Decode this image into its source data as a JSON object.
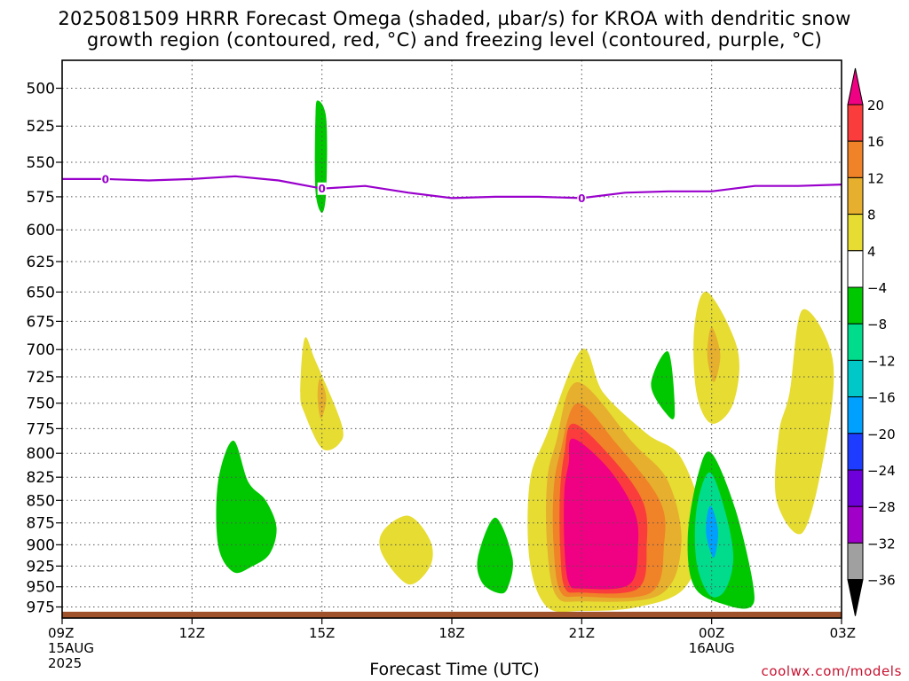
{
  "title_line1": "2025081509 HRRR Forecast Omega (shaded, µbar/s) for KROA with dendritic snow",
  "title_line2": "growth region (contoured, red, °C) and freezing level (contoured, purple, °C)",
  "credit": "coolwx.com/models",
  "chart_data": {
    "type": "heatmap",
    "title": "2025081509 HRRR Forecast Omega (shaded, µbar/s) for KROA with dendritic snow growth region (contoured, red, °C) and freezing level (contoured, purple, °C)",
    "xlabel": "Forecast Time (UTC)",
    "ylabel": "",
    "xlim": [
      0,
      18
    ],
    "ylim": [
      985,
      485
    ],
    "y_scale": "log (pressure, hPa, inverted)",
    "grid": true,
    "x_ticks": [
      {
        "value": 0,
        "label": "09Z",
        "sub": [
          "15AUG",
          "2025"
        ]
      },
      {
        "value": 3,
        "label": "12Z",
        "sub": []
      },
      {
        "value": 6,
        "label": "15Z",
        "sub": []
      },
      {
        "value": 9,
        "label": "18Z",
        "sub": []
      },
      {
        "value": 12,
        "label": "21Z",
        "sub": []
      },
      {
        "value": 15,
        "label": "00Z",
        "sub": [
          "16AUG"
        ]
      },
      {
        "value": 18,
        "label": "03Z",
        "sub": []
      }
    ],
    "y_ticks": [
      500,
      525,
      550,
      575,
      600,
      625,
      650,
      675,
      700,
      725,
      750,
      775,
      800,
      825,
      850,
      875,
      900,
      925,
      950,
      975
    ],
    "colorbar": {
      "labels": [
        "20",
        "16",
        "12",
        "8",
        "4",
        "−4",
        "−8",
        "−12",
        "−16",
        "−20",
        "−24",
        "−28",
        "−32",
        "−36"
      ],
      "colors": [
        "#000000",
        "#a0a0a0",
        "#a000c8",
        "#6e00dc",
        "#1e3cff",
        "#00a0ff",
        "#00c8c8",
        "#00dc8c",
        "#00c800",
        "#ffffff",
        "#e6dc32",
        "#e6af2d",
        "#f08228",
        "#fa3c3c",
        "#f00082"
      ],
      "below_color": "#000000",
      "above_color": "#f00082"
    },
    "freezing_level": {
      "color": "#9900cc",
      "label": "0",
      "points": [
        [
          0,
          562
        ],
        [
          1,
          562
        ],
        [
          2,
          563
        ],
        [
          3,
          562
        ],
        [
          4,
          560
        ],
        [
          5,
          563
        ],
        [
          6,
          569
        ],
        [
          7,
          567
        ],
        [
          8,
          572
        ],
        [
          9,
          576
        ],
        [
          10,
          575
        ],
        [
          11,
          575
        ],
        [
          12,
          576
        ],
        [
          13,
          572
        ],
        [
          14,
          571
        ],
        [
          15,
          571
        ],
        [
          16,
          567
        ],
        [
          17,
          567
        ],
        [
          18,
          566
        ]
      ],
      "labels_at": [
        [
          1,
          562
        ],
        [
          6,
          569
        ],
        [
          12,
          576
        ]
      ]
    },
    "surface": {
      "color": "#a0522d",
      "pressure": 981
    },
    "omega_regions": [
      {
        "value_class": "-8",
        "color": "#00c800",
        "points": [
          [
            5.9,
            508
          ],
          [
            6.1,
            520
          ],
          [
            6.1,
            570
          ],
          [
            6.0,
            587
          ],
          [
            5.85,
            570
          ],
          [
            5.85,
            520
          ]
        ]
      },
      {
        "value_class": "4",
        "color": "#e6dc32",
        "points": [
          [
            5.6,
            690
          ],
          [
            5.85,
            710
          ],
          [
            6.45,
            770
          ],
          [
            6.4,
            790
          ],
          [
            6.0,
            795
          ],
          [
            5.6,
            760
          ],
          [
            5.5,
            740
          ]
        ]
      },
      {
        "value_class": "8",
        "color": "#e6af2d",
        "points": [
          [
            5.95,
            727
          ],
          [
            6.1,
            745
          ],
          [
            5.98,
            765
          ],
          [
            5.9,
            745
          ]
        ]
      },
      {
        "value_class": "-8",
        "color": "#00c800",
        "points": [
          [
            3.95,
            787
          ],
          [
            4.3,
            830
          ],
          [
            4.7,
            850
          ],
          [
            4.95,
            880
          ],
          [
            4.8,
            910
          ],
          [
            4.4,
            925
          ],
          [
            3.95,
            932
          ],
          [
            3.6,
            900
          ],
          [
            3.6,
            830
          ]
        ]
      },
      {
        "value_class": "4",
        "color": "#e6dc32",
        "points": [
          [
            8.0,
            867
          ],
          [
            8.5,
            895
          ],
          [
            8.5,
            925
          ],
          [
            8.0,
            947
          ],
          [
            7.4,
            912
          ],
          [
            7.4,
            885
          ]
        ]
      },
      {
        "value_class": "-8",
        "color": "#00c800",
        "points": [
          [
            10.0,
            869
          ],
          [
            10.4,
            915
          ],
          [
            10.3,
            950
          ],
          [
            10.1,
            958
          ],
          [
            9.7,
            945
          ],
          [
            9.6,
            915
          ]
        ]
      },
      {
        "value_class": "4",
        "color": "#e6dc32",
        "points": [
          [
            12.0,
            700
          ],
          [
            12.5,
            740
          ],
          [
            13.5,
            780
          ],
          [
            14.3,
            805
          ],
          [
            14.8,
            880
          ],
          [
            14.4,
            950
          ],
          [
            13.3,
            975
          ],
          [
            12.0,
            980
          ],
          [
            11.2,
            975
          ],
          [
            10.8,
            920
          ],
          [
            10.8,
            830
          ],
          [
            11.2,
            780
          ]
        ]
      },
      {
        "value_class": "8",
        "color": "#e6af2d",
        "points": [
          [
            11.9,
            730
          ],
          [
            13.2,
            790
          ],
          [
            14.0,
            830
          ],
          [
            14.3,
            900
          ],
          [
            13.8,
            960
          ],
          [
            12.0,
            968
          ],
          [
            11.4,
            960
          ],
          [
            11.2,
            900
          ],
          [
            11.2,
            830
          ],
          [
            11.4,
            790
          ]
        ]
      },
      {
        "value_class": "12",
        "color": "#f08228",
        "points": [
          [
            11.9,
            750
          ],
          [
            12.8,
            790
          ],
          [
            13.8,
            850
          ],
          [
            13.9,
            900
          ],
          [
            13.6,
            957
          ],
          [
            12.0,
            962
          ],
          [
            11.5,
            955
          ],
          [
            11.35,
            900
          ],
          [
            11.35,
            840
          ],
          [
            11.5,
            800
          ]
        ]
      },
      {
        "value_class": "16",
        "color": "#fa3c3c",
        "points": [
          [
            11.8,
            770
          ],
          [
            12.6,
            800
          ],
          [
            13.4,
            850
          ],
          [
            13.5,
            900
          ],
          [
            13.3,
            952
          ],
          [
            12.0,
            957
          ],
          [
            11.6,
            950
          ],
          [
            11.5,
            900
          ],
          [
            11.5,
            840
          ],
          [
            11.6,
            800
          ]
        ]
      },
      {
        "value_class": "20",
        "color": "#f00082",
        "points": [
          [
            11.8,
            785
          ],
          [
            12.6,
            815
          ],
          [
            13.2,
            860
          ],
          [
            13.3,
            900
          ],
          [
            13.1,
            947
          ],
          [
            12.0,
            952
          ],
          [
            11.7,
            945
          ],
          [
            11.6,
            900
          ],
          [
            11.6,
            840
          ],
          [
            11.7,
            810
          ]
        ]
      },
      {
        "value_class": "-8",
        "color": "#00c800",
        "points": [
          [
            14.0,
            702
          ],
          [
            14.15,
            760
          ],
          [
            13.95,
            760
          ],
          [
            13.6,
            732
          ]
        ]
      },
      {
        "value_class": "4",
        "color": "#e6dc32",
        "points": [
          [
            14.9,
            650
          ],
          [
            15.6,
            700
          ],
          [
            15.5,
            750
          ],
          [
            15.0,
            770
          ],
          [
            14.65,
            740
          ],
          [
            14.6,
            680
          ]
        ]
      },
      {
        "value_class": "8",
        "color": "#e6af2d",
        "points": [
          [
            15.0,
            680
          ],
          [
            15.2,
            705
          ],
          [
            15.05,
            730
          ],
          [
            14.9,
            705
          ]
        ]
      },
      {
        "value_class": "4",
        "color": "#e6dc32",
        "points": [
          [
            17.1,
            665
          ],
          [
            17.8,
            710
          ],
          [
            17.6,
            800
          ],
          [
            17.1,
            886
          ],
          [
            16.5,
            850
          ],
          [
            16.55,
            780
          ],
          [
            16.8,
            740
          ]
        ]
      },
      {
        "value_class": "-8",
        "color": "#00c800",
        "points": [
          [
            15.0,
            800
          ],
          [
            15.55,
            860
          ],
          [
            15.95,
            945
          ],
          [
            15.9,
            975
          ],
          [
            15.3,
            972
          ],
          [
            14.6,
            950
          ],
          [
            14.45,
            890
          ],
          [
            14.7,
            820
          ]
        ]
      },
      {
        "value_class": "-12",
        "color": "#00dc8c",
        "points": [
          [
            14.95,
            820
          ],
          [
            15.3,
            860
          ],
          [
            15.5,
            915
          ],
          [
            15.3,
            955
          ],
          [
            14.95,
            960
          ],
          [
            14.65,
            920
          ],
          [
            14.65,
            860
          ]
        ]
      },
      {
        "value_class": "-16",
        "color": "#00a0ff",
        "points": [
          [
            15.0,
            857
          ],
          [
            15.15,
            885
          ],
          [
            15.05,
            915
          ],
          [
            14.88,
            890
          ],
          [
            14.9,
            865
          ]
        ]
      }
    ]
  }
}
